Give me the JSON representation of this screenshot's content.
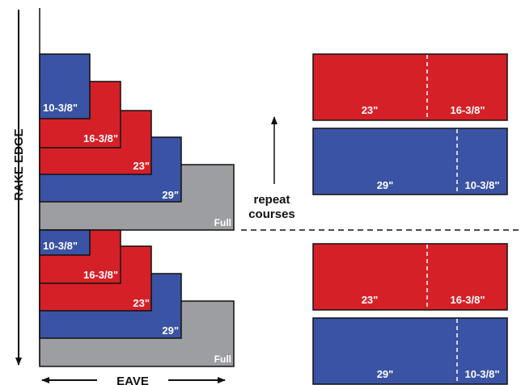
{
  "colors": {
    "red": "#d62027",
    "blue": "#3a53a4",
    "gray": "#9d9ea1",
    "stroke": "#111111",
    "dash": "#ffffff"
  },
  "axis_labels": {
    "rake_edge": "RAKE EDGE",
    "eave": "EAVE"
  },
  "repeat_label": {
    "line1": "repeat",
    "line2": "courses"
  },
  "stack_top": {
    "labels": {
      "s10": "10-3/8\"",
      "s16": "16-3/8\"",
      "s23": "23\"",
      "s29": "29\"",
      "full": "Full"
    }
  },
  "stack_bottom": {
    "labels": {
      "s10": "10-3/8\"",
      "s16": "16-3/8\"",
      "s23": "23\"",
      "s29": "29\"",
      "full": "Full"
    }
  },
  "cut_panels": [
    {
      "left_label": "23\"",
      "right_label": "16-3/8\""
    },
    {
      "left_label": "29\"",
      "right_label": "10-3/8\""
    },
    {
      "left_label": "23\"",
      "right_label": "16-3/8\""
    },
    {
      "left_label": "29\"",
      "right_label": "10-3/8\""
    }
  ]
}
